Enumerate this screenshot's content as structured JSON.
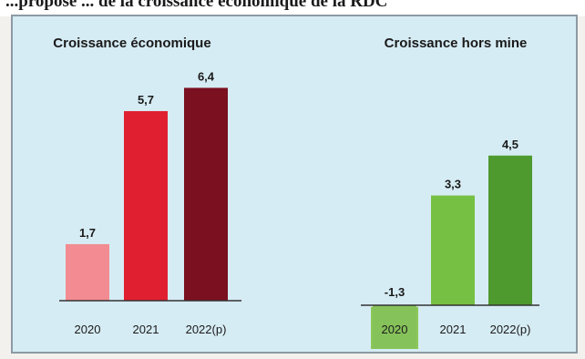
{
  "page": {
    "caption": "...proposé ... de la croissance économique de la RDC"
  },
  "chart_data": [
    {
      "type": "bar",
      "title": "Croissance économique",
      "categories": [
        "2020",
        "2021",
        "2022(p)"
      ],
      "values": [
        1.7,
        5.7,
        6.4
      ],
      "value_labels": [
        "1,7",
        "5,7",
        "6,4"
      ],
      "colors": [
        "#f28c92",
        "#e02030",
        "#7a1020"
      ],
      "ylim": [
        0,
        6.4
      ],
      "grid": false,
      "legend": "none"
    },
    {
      "type": "bar",
      "title": "Croissance hors mine",
      "categories": [
        "2020",
        "2021",
        "2022(p)"
      ],
      "values": [
        -1.3,
        3.3,
        4.5
      ],
      "value_labels": [
        "-1,3",
        "3,3",
        "4,5"
      ],
      "colors": [
        "#86c25a",
        "#76c043",
        "#4e9a2e"
      ],
      "highlight_category": "2020",
      "highlight_color": "#8cc85a",
      "ylim": [
        -1.3,
        4.5
      ],
      "grid": false,
      "legend": "none"
    }
  ]
}
